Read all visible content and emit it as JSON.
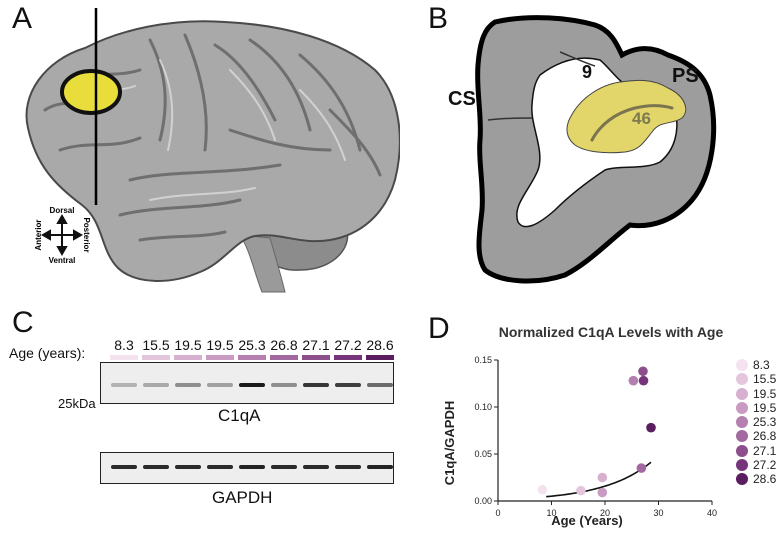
{
  "panel_a": {
    "letter": "A",
    "orientation": {
      "dorsal": "Dorsal",
      "ventral": "Ventral",
      "anterior": "Anterior",
      "posterior": "Posterior"
    }
  },
  "panel_b": {
    "letter": "B",
    "labels": {
      "cs": "CS",
      "ps": "PS",
      "area9": "9",
      "area46": "46"
    }
  },
  "panel_c": {
    "letter": "C",
    "age_label": "Age (years):",
    "ages": [
      "8.3",
      "15.5",
      "19.5",
      "19.5",
      "25.3",
      "26.8",
      "27.1",
      "27.2",
      "28.6"
    ],
    "age_colors": [
      "#f4e3ef",
      "#e3c6dc",
      "#d6b0ce",
      "#c99bc2",
      "#b57fb0",
      "#a169a0",
      "#8c4f8c",
      "#76357a",
      "#5a1d5f"
    ],
    "blot1_label": "C1qA",
    "blot2_label": "GAPDH",
    "kda_label": "25kDa",
    "c1qa_intensity": [
      0.15,
      0.2,
      0.35,
      0.25,
      1.0,
      0.35,
      0.85,
      0.8,
      0.55
    ],
    "gapdh_intensity": [
      0.9,
      0.9,
      0.9,
      0.9,
      0.95,
      0.9,
      0.9,
      0.9,
      0.95
    ]
  },
  "panel_d": {
    "letter": "D",
    "legend": [
      "8.3",
      "15.5",
      "19.5",
      "19.5",
      "25.3",
      "26.8",
      "27.1",
      "27.2",
      "28.6"
    ]
  },
  "chart_data": {
    "type": "scatter",
    "title": "Normalized C1qA Levels with Age",
    "xlabel": "Age (Years)",
    "ylabel": "C1qA/GAPDH",
    "xlim": [
      0,
      40
    ],
    "ylim": [
      0,
      0.15
    ],
    "xticks": [
      "0",
      "10",
      "20",
      "30",
      "40"
    ],
    "yticks": [
      "0.00",
      "0.05",
      "0.10",
      "0.15"
    ],
    "points": [
      {
        "label": "8.3",
        "x": 8.3,
        "y": 0.012,
        "color": "#f4e3ef"
      },
      {
        "label": "15.5",
        "x": 15.5,
        "y": 0.011,
        "color": "#e3c6dc"
      },
      {
        "label": "19.5",
        "x": 19.5,
        "y": 0.025,
        "color": "#d6b0ce"
      },
      {
        "label": "19.5",
        "x": 19.5,
        "y": 0.009,
        "color": "#c99bc2"
      },
      {
        "label": "25.3",
        "x": 25.3,
        "y": 0.128,
        "color": "#b57fb0"
      },
      {
        "label": "26.8",
        "x": 26.8,
        "y": 0.035,
        "color": "#a169a0"
      },
      {
        "label": "27.1",
        "x": 27.1,
        "y": 0.138,
        "color": "#8c4f8c"
      },
      {
        "label": "27.2",
        "x": 27.2,
        "y": 0.128,
        "color": "#76357a"
      },
      {
        "label": "28.6",
        "x": 28.6,
        "y": 0.078,
        "color": "#5a1d5f"
      }
    ],
    "fit": {
      "type": "exponential",
      "x_range": [
        9,
        28.6
      ],
      "a": 0.0046,
      "b": 0.112
    },
    "grid": false,
    "legend_position": "right"
  }
}
